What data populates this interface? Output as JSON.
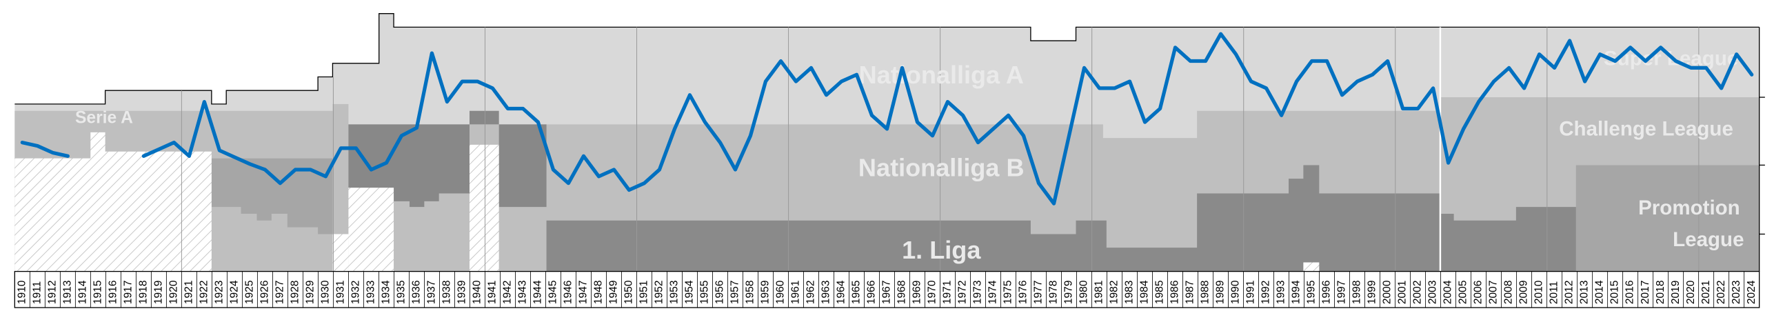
{
  "chart_data": {
    "type": "line",
    "categories": [
      "1910",
      "1911",
      "1912",
      "1913",
      "1914",
      "1915",
      "1916",
      "1917",
      "1918",
      "1919",
      "1920",
      "1921",
      "1922",
      "1923",
      "1924",
      "1925",
      "1926",
      "1927",
      "1928",
      "1929",
      "1930",
      "1931",
      "1932",
      "1933",
      "1934",
      "1935",
      "1936",
      "1937",
      "1938",
      "1939",
      "1940",
      "1941",
      "1942",
      "1943",
      "1944",
      "1945",
      "1946",
      "1947",
      "1948",
      "1949",
      "1950",
      "1951",
      "1952",
      "1953",
      "1954",
      "1955",
      "1956",
      "1957",
      "1958",
      "1959",
      "1960",
      "1961",
      "1962",
      "1963",
      "1964",
      "1965",
      "1966",
      "1967",
      "1968",
      "1969",
      "1970",
      "1971",
      "1972",
      "1973",
      "1974",
      "1975",
      "1976",
      "1977",
      "1978",
      "1979",
      "1980",
      "1981",
      "1982",
      "1983",
      "1984",
      "1985",
      "1986",
      "1987",
      "1988",
      "1989",
      "1990",
      "1991",
      "1992",
      "1993",
      "1994",
      "1995",
      "1996",
      "1997",
      "1998",
      "1999",
      "2000",
      "2001",
      "2002",
      "2003",
      "2004",
      "2005",
      "2006",
      "2007",
      "2008",
      "2009",
      "2010",
      "2011",
      "2012",
      "2013",
      "2014",
      "2015",
      "2016",
      "2017",
      "2018",
      "2019",
      "2020",
      "2021",
      "2022",
      "2023",
      "2024"
    ],
    "series": [
      {
        "color": "#0070c0",
        "values": [
          114,
          111,
          105,
          102,
          null,
          null,
          null,
          null,
          102,
          108,
          114,
          102,
          150,
          107,
          101,
          95,
          90,
          78,
          90,
          90,
          84,
          109,
          109,
          90,
          96,
          120,
          127,
          193,
          150,
          168,
          168,
          162,
          144,
          144,
          132,
          90,
          78,
          102,
          84,
          90,
          72,
          78,
          90,
          126,
          156,
          132,
          114,
          90,
          120,
          168,
          186,
          168,
          180,
          156,
          168,
          174,
          138,
          126,
          180,
          132,
          120,
          150,
          138,
          114,
          126,
          138,
          120,
          78,
          60,
          120,
          180,
          162,
          162,
          168,
          132,
          144,
          198,
          186,
          186,
          210,
          192,
          168,
          162,
          138,
          168,
          186,
          186,
          156,
          168,
          174,
          186,
          144,
          144,
          162,
          96,
          126,
          150,
          168,
          180,
          162,
          192,
          180,
          204,
          168,
          192,
          186,
          198,
          186,
          198,
          186,
          180,
          180,
          162,
          192,
          174
        ]
      }
    ],
    "ylim": [
      0,
      228
    ],
    "annotations": [
      "Serie A",
      "Nationalliga A",
      "Nationalliga B",
      "1. Liga",
      "Super League",
      "Challenge League",
      "Promotion",
      "League"
    ]
  }
}
